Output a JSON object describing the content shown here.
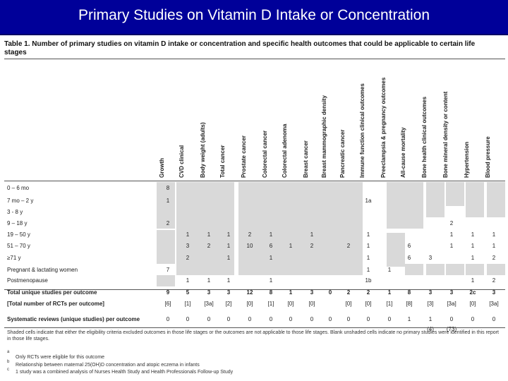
{
  "title": "Primary Studies on Vitamin D Intake or Concentration",
  "caption": "Table 1. Number of primary studies on vitamin D intake or concentration and specific health outcomes that could be applicable to certain life stages",
  "columns": [
    "Growth",
    "CVD clinical",
    "Body weight (adults)",
    "Total cancer",
    "Prostate cancer",
    "Colorectal cancer",
    "Colorectal adenoma",
    "Breast cancer",
    "Breast mammographic density",
    "Pancreatic cancer",
    "Immune function clinical outcomes",
    "Preeclampsia & pregnancy outcomes",
    "All-cause mortality",
    "Bone health clinical outcomes",
    "Bone mineral density or content",
    "Hypertension",
    "Blood pressure"
  ],
  "rows": [
    {
      "label": "0 – 6 mo",
      "cells": [
        "8",
        "",
        "",
        "",
        "",
        "",
        "",
        "",
        "",
        "",
        "",
        "",
        "",
        "",
        "",
        "",
        ""
      ]
    },
    {
      "label": "7 mo – 2 y",
      "cells": [
        "1",
        "",
        "",
        "",
        "",
        "",
        "",
        "",
        "",
        "",
        "1a",
        "",
        "",
        "",
        "",
        "",
        ""
      ]
    },
    {
      "label": "3 - 8 y",
      "cells": [
        "",
        "",
        "",
        "",
        "",
        "",
        "",
        "",
        "",
        "",
        "",
        "",
        "",
        "",
        "",
        "",
        ""
      ]
    },
    {
      "label": "9 – 18 y",
      "cells": [
        "2",
        "",
        "",
        "",
        "",
        "",
        "",
        "",
        "",
        "",
        "",
        "",
        "",
        "",
        "2",
        "",
        ""
      ]
    },
    {
      "label": "19 – 50 y",
      "cells": [
        "",
        "1",
        "1",
        "1",
        "2",
        "1",
        "",
        "1",
        "",
        "",
        "1",
        "",
        "",
        "",
        "1",
        "1",
        "1"
      ]
    },
    {
      "label": "51 – 70 y",
      "cells": [
        "",
        "3",
        "2",
        "1",
        "10",
        "6",
        "1",
        "2",
        "",
        "2",
        "1",
        "",
        "6",
        "",
        "1",
        "1",
        "1"
      ]
    },
    {
      "label": "≥71 y",
      "cells": [
        "",
        "2",
        "",
        "1",
        "",
        "1",
        "",
        "",
        "",
        "",
        "1",
        "",
        "6",
        "3",
        "",
        "1",
        "2"
      ]
    },
    {
      "label": "Pregnant & lactating women",
      "cells": [
        "7",
        "",
        "",
        "",
        "",
        "",
        "",
        "",
        "",
        "",
        "1",
        "1",
        "",
        "",
        "",
        "",
        ""
      ]
    },
    {
      "label": "Postmenopause",
      "cells": [
        "",
        "1",
        "1",
        "1",
        "",
        "1",
        "",
        "",
        "",
        "",
        "1b",
        "",
        "",
        "",
        "",
        "1",
        "2"
      ]
    }
  ],
  "totals": {
    "label": "Total unique studies per outcome",
    "cells": [
      "9",
      "5",
      "3",
      "3",
      "12",
      "8",
      "1",
      "3",
      "0",
      "2",
      "2",
      "1",
      "8",
      "3",
      "3",
      "2c",
      "3"
    ]
  },
  "rcts": {
    "label": "[Total number of RCTs per outcome]",
    "cells": [
      "[6]",
      "[1]",
      "[3a]",
      "[2]",
      "[0]",
      "[1]",
      "[0]",
      "[0]",
      "",
      "[0]",
      "[0]",
      "[1]",
      "[8]",
      "[3]",
      "[3a]",
      "[0]",
      "[3a]"
    ]
  },
  "reviews": {
    "label": "Systematic reviews (unique studies) per outcome",
    "cells": [
      "0",
      "0",
      "0",
      "0",
      "0",
      "0",
      "0",
      "0",
      "0",
      "0",
      "0",
      "0",
      "1",
      "1",
      "0",
      "0",
      "0"
    ],
    "sub": {
      "13": "(4)",
      "14": "(73)"
    }
  },
  "notes": {
    "shaded": "Shaded cells indicate that either the eligibility criteria excluded outcomes in those life stages or the outcomes are not applicable to those life stages. Blank unshaded cells indicate no primary studies were identified in this report in those life stages.",
    "a": "Only RCTs were eligible for this outcome",
    "b": "Relationship between maternal 25(OH)D concentration and atopic eczema in infants",
    "c": "1 study was a combined analysis of Nurses Health Study and Health Professionals Follow-up Study"
  },
  "colors": {
    "title_bg": "#000099",
    "title_fg": "#ffffff",
    "shade": "#d9d9d9"
  }
}
